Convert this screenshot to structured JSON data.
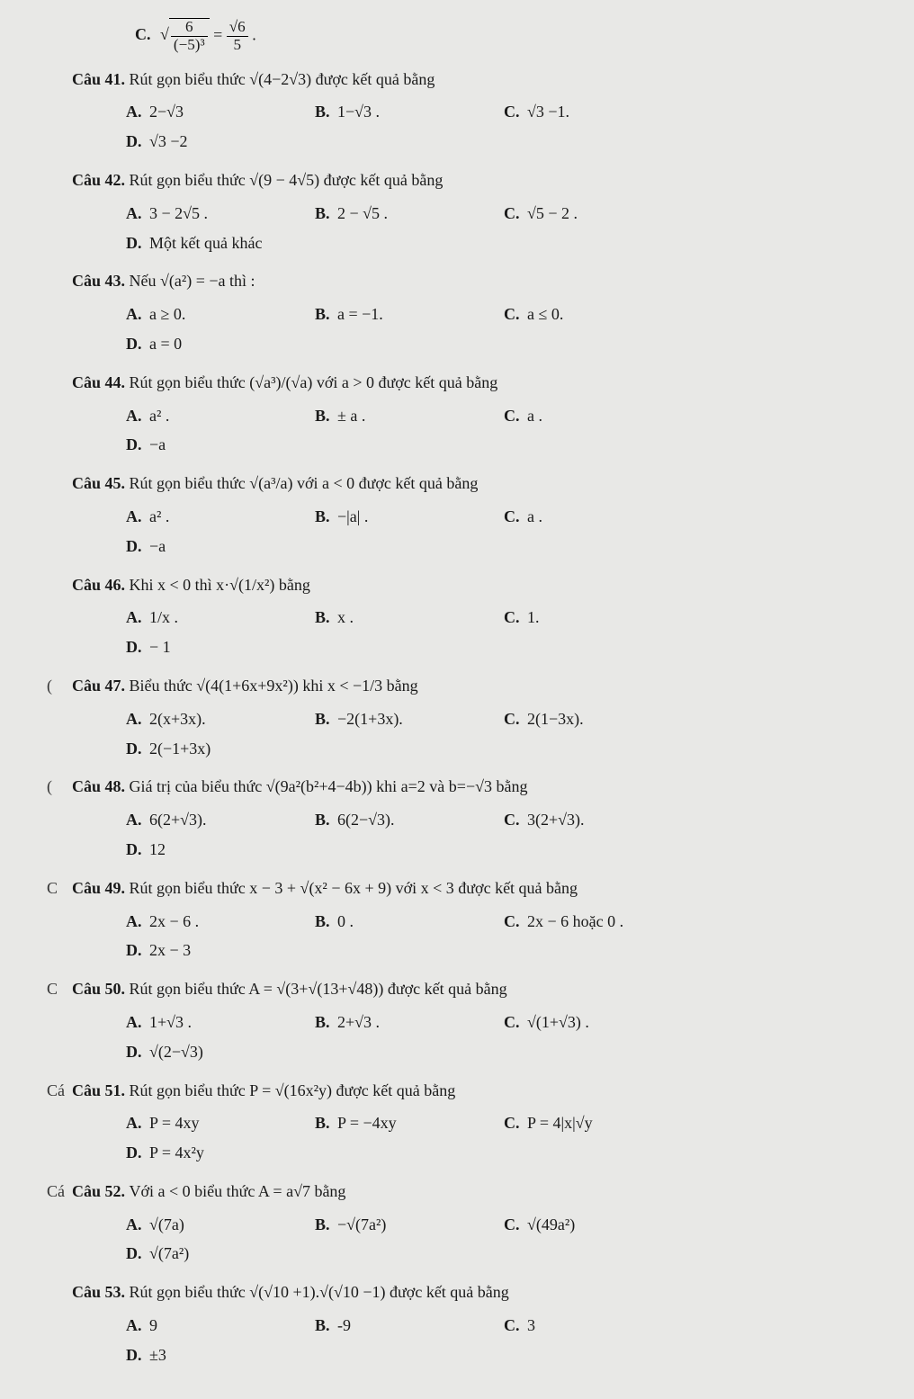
{
  "top_fragment": {
    "label": "C.",
    "expr": "√(6/(−5)³) = √6/5 ."
  },
  "questions": [
    {
      "num": "Câu 41.",
      "stem": "Rút gọn biểu thức √(4−2√3) được kết quả bằng",
      "opts": [
        {
          "l": "A.",
          "t": "2−√3"
        },
        {
          "l": "B.",
          "t": "1−√3 ."
        },
        {
          "l": "C.",
          "t": "√3 −1."
        },
        {
          "l": "D.",
          "t": "√3 −2"
        }
      ]
    },
    {
      "num": "Câu 42.",
      "stem": "Rút gọn biểu thức √(9 − 4√5) được kết quả bằng",
      "opts": [
        {
          "l": "A.",
          "t": "3 − 2√5 ."
        },
        {
          "l": "B.",
          "t": "2 − √5 ."
        },
        {
          "l": "C.",
          "t": "√5 − 2 ."
        },
        {
          "l": "D.",
          "t": "Một kết quả khác"
        }
      ]
    },
    {
      "num": "Câu 43.",
      "stem": "Nếu √(a²) = −a thì :",
      "opts": [
        {
          "l": "A.",
          "t": "a ≥ 0."
        },
        {
          "l": "B.",
          "t": "a = −1."
        },
        {
          "l": "C.",
          "t": "a ≤ 0."
        },
        {
          "l": "D.",
          "t": "a = 0"
        }
      ]
    },
    {
      "num": "Câu 44.",
      "stem": "Rút gọn biểu thức (√a³)/(√a) với a > 0 được kết quả bằng",
      "opts": [
        {
          "l": "A.",
          "t": "a² ."
        },
        {
          "l": "B.",
          "t": "± a ."
        },
        {
          "l": "C.",
          "t": "a ."
        },
        {
          "l": "D.",
          "t": "−a"
        }
      ]
    },
    {
      "num": "Câu 45.",
      "stem": "Rút gọn biểu thức √(a³/a) với a < 0 được kết quả bằng",
      "opts": [
        {
          "l": "A.",
          "t": "a² ."
        },
        {
          "l": "B.",
          "t": "−|a| ."
        },
        {
          "l": "C.",
          "t": "a ."
        },
        {
          "l": "D.",
          "t": "−a"
        }
      ]
    },
    {
      "num": "Câu 46.",
      "stem": "Khi x < 0 thì  x·√(1/x²) bằng",
      "opts": [
        {
          "l": "A.",
          "t": "1/x ."
        },
        {
          "l": "B.",
          "t": "x ."
        },
        {
          "l": "C.",
          "t": "1."
        },
        {
          "l": "D.",
          "t": "− 1"
        }
      ]
    },
    {
      "num": "Câu 47.",
      "stem": "Biểu thức √(4(1+6x+9x²)) khi x < −1/3 bằng",
      "marker": "(",
      "opts": [
        {
          "l": "A.",
          "t": "2(x+3x)."
        },
        {
          "l": "B.",
          "t": "−2(1+3x)."
        },
        {
          "l": "C.",
          "t": "2(1−3x)."
        },
        {
          "l": "D.",
          "t": "2(−1+3x)"
        }
      ]
    },
    {
      "num": "Câu 48.",
      "stem": "Giá trị của biểu thức √(9a²(b²+4−4b)) khi a=2 và b=−√3 bằng",
      "marker": "(",
      "opts": [
        {
          "l": "A.",
          "t": "6(2+√3)."
        },
        {
          "l": "B.",
          "t": "6(2−√3)."
        },
        {
          "l": "C.",
          "t": "3(2+√3)."
        },
        {
          "l": "D.",
          "t": "12"
        }
      ]
    },
    {
      "num": "Câu 49.",
      "stem": "Rút gọn biểu thức x − 3 + √(x² − 6x + 9) với x < 3 được kết quả bằng",
      "marker": "C",
      "opts": [
        {
          "l": "A.",
          "t": "2x − 6 ."
        },
        {
          "l": "B.",
          "t": "0 ."
        },
        {
          "l": "C.",
          "t": "2x − 6 hoặc 0 ."
        },
        {
          "l": "D.",
          "t": "2x − 3"
        }
      ]
    },
    {
      "num": "Câu 50.",
      "stem": "Rút gọn biểu thức A = √(3+√(13+√48)) được kết quả bằng",
      "marker": "C",
      "opts": [
        {
          "l": "A.",
          "t": "1+√3 ."
        },
        {
          "l": "B.",
          "t": "2+√3 ."
        },
        {
          "l": "C.",
          "t": "√(1+√3) ."
        },
        {
          "l": "D.",
          "t": "√(2−√3)"
        }
      ]
    },
    {
      "num": "Câu 51.",
      "stem": "Rút gọn biểu thức P = √(16x²y) được kết quả bằng",
      "marker": "Cá",
      "opts": [
        {
          "l": "A.",
          "t": "P = 4xy"
        },
        {
          "l": "B.",
          "t": "P = −4xy"
        },
        {
          "l": "C.",
          "t": "P = 4|x|√y"
        },
        {
          "l": "D.",
          "t": "P = 4x²y"
        }
      ]
    },
    {
      "num": "Câu 52.",
      "stem": "Với a < 0 biểu thức A = a√7 bằng",
      "marker": "Cá",
      "opts": [
        {
          "l": "A.",
          "t": "√(7a)"
        },
        {
          "l": "B.",
          "t": "−√(7a²)"
        },
        {
          "l": "C.",
          "t": "√(49a²)"
        },
        {
          "l": "D.",
          "t": "√(7a²)"
        }
      ]
    },
    {
      "num": "Câu 53.",
      "stem": "Rút gọn biểu thức √(√10 +1).√(√10 −1) được kết quả bằng",
      "opts": [
        {
          "l": "A.",
          "t": "9"
        },
        {
          "l": "B.",
          "t": "-9"
        },
        {
          "l": "C.",
          "t": "3"
        },
        {
          "l": "D.",
          "t": "±3"
        }
      ]
    }
  ]
}
